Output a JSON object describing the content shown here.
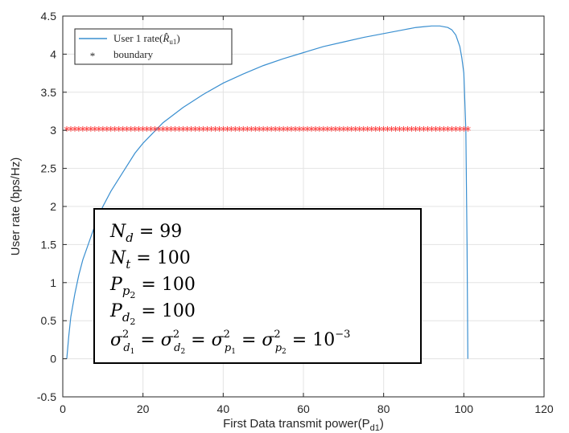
{
  "chart_data": {
    "type": "line",
    "xlabel": "First Data transmit power(P",
    "xlabel_sub": "d1",
    "xlabel_close": ")",
    "ylabel": "User rate (bps/Hz)",
    "xlim": [
      0,
      120
    ],
    "ylim": [
      -0.5,
      4.5
    ],
    "x_ticks": [
      0,
      20,
      40,
      60,
      80,
      100,
      120
    ],
    "y_ticks": [
      -0.5,
      0,
      0.5,
      1,
      1.5,
      2,
      2.5,
      3,
      3.5,
      4,
      4.5
    ],
    "x_tick_labels": [
      "0",
      "20",
      "40",
      "60",
      "80",
      "100",
      "120"
    ],
    "y_tick_labels": [
      "-0.5",
      "0",
      "0.5",
      "1",
      "1.5",
      "2",
      "2.5",
      "3",
      "3.5",
      "4",
      "4.5"
    ],
    "grid": true,
    "legend_position": "top-left",
    "series": [
      {
        "name": "User 1 rate(R̂u1)",
        "legend_main": "User 1 rate(",
        "legend_var": "R̂",
        "legend_sub": "u1",
        "legend_close": ")",
        "style": "line",
        "color": "#3a8fd0",
        "x": [
          1,
          1.5,
          2,
          3,
          4,
          5,
          6,
          8,
          10,
          12,
          15,
          18,
          20,
          25,
          30,
          35,
          40,
          45,
          50,
          55,
          60,
          65,
          70,
          75,
          80,
          85,
          88,
          90,
          92,
          94,
          96,
          97,
          98,
          99,
          99.5,
          100,
          100.5,
          100.8,
          101
        ],
        "y": [
          0,
          0.3,
          0.55,
          0.85,
          1.1,
          1.3,
          1.45,
          1.75,
          2.0,
          2.2,
          2.45,
          2.7,
          2.83,
          3.1,
          3.3,
          3.47,
          3.62,
          3.74,
          3.85,
          3.94,
          4.02,
          4.1,
          4.16,
          4.22,
          4.27,
          4.32,
          4.35,
          4.36,
          4.37,
          4.37,
          4.35,
          4.32,
          4.25,
          4.1,
          3.95,
          3.75,
          3.0,
          1.5,
          0
        ]
      },
      {
        "name": "boundary",
        "style": "marker",
        "marker": "*",
        "color": "#ff2a2a",
        "x_start": 1,
        "x_end": 101,
        "x_step": 1,
        "y_value": 3
      }
    ],
    "annotations": [
      {
        "symbol": "N",
        "sub": "d",
        "rhs": "= 99"
      },
      {
        "symbol": "N",
        "sub": "t",
        "rhs": "= 100"
      },
      {
        "symbol": "P",
        "sub": "p",
        "subsub": "2",
        "rhs": "= 100"
      },
      {
        "symbol": "P",
        "sub": "d",
        "subsub": "2",
        "rhs": "= 100"
      }
    ],
    "annotation_sigma": {
      "terms": [
        {
          "sub": "d",
          "subsub": "1"
        },
        {
          "sub": "d",
          "subsub": "2"
        },
        {
          "sub": "p",
          "subsub": "1"
        },
        {
          "sub": "p",
          "subsub": "2"
        }
      ],
      "symbol": "σ",
      "sup": "2",
      "rhs_base": "10",
      "rhs_exp": "−3"
    }
  }
}
